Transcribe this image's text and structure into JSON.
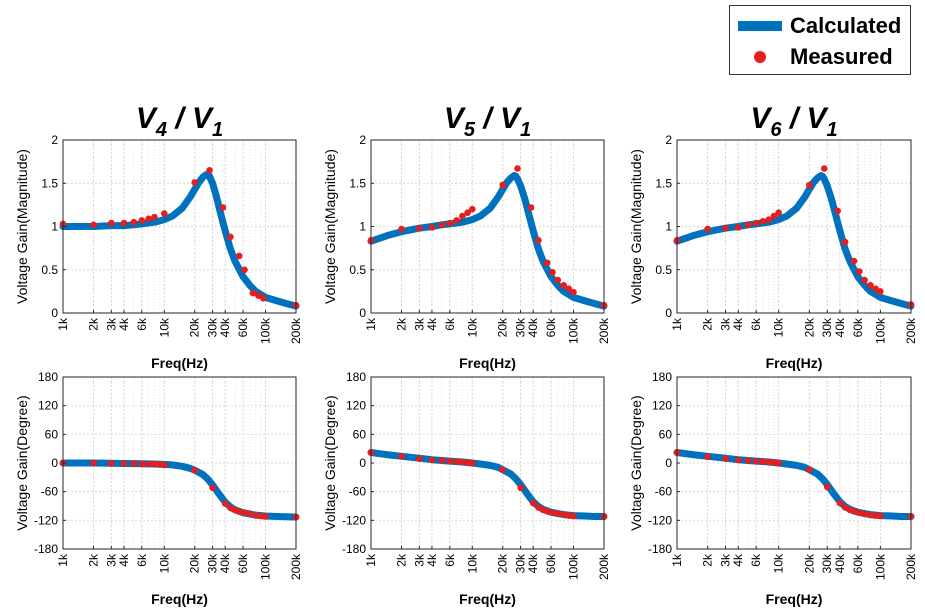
{
  "colors": {
    "calculated": "#0072BD",
    "measured": "#E61E1E",
    "grid": "#d9d9d9"
  },
  "legend": {
    "calculated": "Calculated",
    "measured": "Measured"
  },
  "chart_data": [
    {
      "type": "line",
      "panel": "V4/V1 magnitude",
      "title": {
        "main": "V",
        "sub": "4",
        "sep": " / V",
        "sub2": "1"
      },
      "xlabel": "Freq(Hz)",
      "ylabel": "Voltage Gain(Magnitude)",
      "xscale": "log",
      "xlim": [
        1000,
        200000
      ],
      "ylim": [
        0,
        2
      ],
      "xticks": [
        1000,
        2000,
        3000,
        4000,
        6000,
        10000,
        20000,
        30000,
        40000,
        60000,
        100000,
        200000
      ],
      "xticklabels": [
        "1k",
        "2k",
        "3k",
        "4k",
        "6k",
        "10k",
        "20k",
        "30k",
        "40k",
        "60k",
        "100k",
        "200k"
      ],
      "yticks": [
        0,
        0.5,
        1,
        1.5,
        2
      ],
      "yticklabels": [
        "0",
        "0.5",
        "1",
        "1.5",
        "2"
      ],
      "series": [
        {
          "name": "Calculated",
          "x": [
            1000,
            2000,
            3000,
            4000,
            5000,
            6000,
            8000,
            10000,
            12000,
            15000,
            18000,
            20000,
            22000,
            24000,
            26000,
            27000,
            28000,
            30000,
            33000,
            36000,
            40000,
            45000,
            50000,
            60000,
            70000,
            80000,
            100000,
            130000,
            160000,
            200000
          ],
          "y": [
            1.0,
            1.0,
            1.01,
            1.01,
            1.02,
            1.03,
            1.05,
            1.08,
            1.12,
            1.21,
            1.34,
            1.43,
            1.51,
            1.57,
            1.6,
            1.6,
            1.58,
            1.5,
            1.33,
            1.15,
            0.95,
            0.74,
            0.6,
            0.42,
            0.32,
            0.25,
            0.18,
            0.14,
            0.11,
            0.08
          ]
        },
        {
          "name": "Measured",
          "x": [
            1000,
            2000,
            3000,
            4000,
            5000,
            6000,
            7000,
            8000,
            10000,
            20000,
            28000,
            38000,
            45000,
            55000,
            62000,
            75000,
            85000,
            95000,
            200000
          ],
          "y": [
            1.03,
            1.02,
            1.04,
            1.04,
            1.05,
            1.07,
            1.09,
            1.11,
            1.15,
            1.51,
            1.65,
            1.22,
            0.88,
            0.66,
            0.5,
            0.23,
            0.2,
            0.17,
            0.09
          ]
        }
      ]
    },
    {
      "type": "line",
      "panel": "V5/V1 magnitude",
      "title": {
        "main": "V",
        "sub": "5",
        "sep": " / V",
        "sub2": "1"
      },
      "xlabel": "Freq(Hz)",
      "ylabel": "Voltage Gain(Magnitude)",
      "xscale": "log",
      "xlim": [
        1000,
        200000
      ],
      "ylim": [
        0,
        2
      ],
      "xticks": [
        1000,
        2000,
        3000,
        4000,
        6000,
        10000,
        20000,
        30000,
        40000,
        60000,
        100000,
        200000
      ],
      "xticklabels": [
        "1k",
        "2k",
        "3k",
        "4k",
        "6k",
        "10k",
        "20k",
        "30k",
        "40k",
        "60k",
        "100k",
        "200k"
      ],
      "yticks": [
        0,
        0.5,
        1,
        1.5,
        2
      ],
      "yticklabels": [
        "0",
        "0.5",
        "1",
        "1.5",
        "2"
      ],
      "series": [
        {
          "name": "Calculated",
          "x": [
            1000,
            1500,
            2000,
            3000,
            4000,
            5000,
            6000,
            8000,
            10000,
            12000,
            15000,
            18000,
            20000,
            22000,
            24000,
            26000,
            27000,
            28000,
            30000,
            33000,
            36000,
            40000,
            45000,
            50000,
            60000,
            70000,
            80000,
            100000,
            130000,
            160000,
            200000
          ],
          "y": [
            0.83,
            0.9,
            0.94,
            0.98,
            1.0,
            1.02,
            1.03,
            1.05,
            1.08,
            1.12,
            1.21,
            1.34,
            1.43,
            1.51,
            1.56,
            1.59,
            1.58,
            1.55,
            1.47,
            1.32,
            1.15,
            0.95,
            0.74,
            0.6,
            0.42,
            0.32,
            0.25,
            0.18,
            0.14,
            0.11,
            0.08
          ]
        },
        {
          "name": "Measured",
          "x": [
            1000,
            2000,
            3000,
            4000,
            5000,
            6000,
            7000,
            8000,
            9000,
            10000,
            20000,
            28000,
            38000,
            45000,
            55000,
            62000,
            70000,
            80000,
            90000,
            100000,
            200000
          ],
          "y": [
            0.84,
            0.97,
            0.98,
            0.99,
            1.02,
            1.04,
            1.07,
            1.12,
            1.16,
            1.2,
            1.48,
            1.67,
            1.22,
            0.84,
            0.58,
            0.47,
            0.38,
            0.32,
            0.28,
            0.24,
            0.09
          ]
        }
      ]
    },
    {
      "type": "line",
      "panel": "V6/V1 magnitude",
      "title": {
        "main": "V",
        "sub": "6",
        "sep": " / V",
        "sub2": "1"
      },
      "xlabel": "Freq(Hz)",
      "ylabel": "Voltage Gain(Magnitude)",
      "xscale": "log",
      "xlim": [
        1000,
        200000
      ],
      "ylim": [
        0,
        2
      ],
      "xticks": [
        1000,
        2000,
        3000,
        4000,
        6000,
        10000,
        20000,
        30000,
        40000,
        60000,
        100000,
        200000
      ],
      "xticklabels": [
        "1k",
        "2k",
        "3k",
        "4k",
        "6k",
        "10k",
        "20k",
        "30k",
        "40k",
        "60k",
        "100k",
        "200k"
      ],
      "yticks": [
        0,
        0.5,
        1,
        1.5,
        2
      ],
      "yticklabels": [
        "0",
        "0.5",
        "1",
        "1.5",
        "2"
      ],
      "series": [
        {
          "name": "Calculated",
          "x": [
            1000,
            1500,
            2000,
            3000,
            4000,
            5000,
            6000,
            8000,
            10000,
            12000,
            15000,
            18000,
            20000,
            22000,
            24000,
            26000,
            27000,
            28000,
            30000,
            33000,
            36000,
            40000,
            45000,
            50000,
            60000,
            70000,
            80000,
            100000,
            130000,
            160000,
            200000
          ],
          "y": [
            0.83,
            0.9,
            0.94,
            0.98,
            1.0,
            1.02,
            1.03,
            1.05,
            1.08,
            1.12,
            1.21,
            1.34,
            1.43,
            1.51,
            1.56,
            1.59,
            1.58,
            1.55,
            1.47,
            1.32,
            1.15,
            0.95,
            0.74,
            0.6,
            0.42,
            0.32,
            0.25,
            0.18,
            0.14,
            0.11,
            0.08
          ]
        },
        {
          "name": "Measured",
          "x": [
            1000,
            2000,
            3000,
            4000,
            5000,
            6000,
            7000,
            8000,
            9000,
            10000,
            20000,
            28000,
            38000,
            45000,
            55000,
            62000,
            70000,
            80000,
            90000,
            100000,
            200000
          ],
          "y": [
            0.84,
            0.97,
            0.98,
            0.99,
            1.02,
            1.04,
            1.06,
            1.08,
            1.12,
            1.16,
            1.48,
            1.67,
            1.18,
            0.82,
            0.6,
            0.48,
            0.38,
            0.32,
            0.28,
            0.25,
            0.1
          ]
        }
      ]
    },
    {
      "type": "line",
      "panel": "V4/V1 phase",
      "xlabel": "Freq(Hz)",
      "ylabel": "Voltage Gain(Degree)",
      "xscale": "log",
      "xlim": [
        1000,
        200000
      ],
      "ylim": [
        -180,
        180
      ],
      "xticks": [
        1000,
        2000,
        3000,
        4000,
        6000,
        10000,
        20000,
        30000,
        40000,
        60000,
        100000,
        200000
      ],
      "xticklabels": [
        "1k",
        "2k",
        "3k",
        "4k",
        "6k",
        "10k",
        "20k",
        "30k",
        "40k",
        "60k",
        "100k",
        "200k"
      ],
      "yticks": [
        -180,
        -120,
        -60,
        0,
        60,
        120,
        180
      ],
      "yticklabels": [
        "-180",
        "-120",
        "-60",
        "0",
        "60",
        "120",
        "180"
      ],
      "series": [
        {
          "name": "Calculated",
          "x": [
            1000,
            2000,
            3000,
            4000,
            6000,
            8000,
            10000,
            12000,
            15000,
            18000,
            20000,
            24000,
            27000,
            30000,
            35000,
            40000,
            45000,
            50000,
            60000,
            70000,
            80000,
            100000,
            130000,
            160000,
            200000
          ],
          "y": [
            0,
            0,
            -0.5,
            -1,
            -1.5,
            -2,
            -3,
            -4,
            -7,
            -11,
            -15,
            -24,
            -34,
            -46,
            -66,
            -82,
            -92,
            -98,
            -104,
            -107,
            -109,
            -111,
            -112,
            -112.5,
            -113
          ]
        },
        {
          "name": "Measured",
          "x": [
            1000,
            2000,
            3000,
            4000,
            5000,
            6000,
            7000,
            8000,
            9000,
            10000,
            20000,
            30000,
            40000,
            45000,
            50000,
            55000,
            62000,
            70000,
            80000,
            90000,
            100000,
            200000
          ],
          "y": [
            0,
            0,
            -1,
            -1,
            -1,
            -2,
            -2,
            -2,
            -3,
            -4,
            -15,
            -52,
            -85,
            -94,
            -98,
            -102,
            -104,
            -106,
            -110,
            -111,
            -112,
            -113
          ]
        }
      ]
    },
    {
      "type": "line",
      "panel": "V5/V1 phase",
      "xlabel": "Freq(Hz)",
      "ylabel": "Voltage Gain(Degree)",
      "xscale": "log",
      "xlim": [
        1000,
        200000
      ],
      "ylim": [
        -180,
        180
      ],
      "xticks": [
        1000,
        2000,
        3000,
        4000,
        6000,
        10000,
        20000,
        30000,
        40000,
        60000,
        100000,
        200000
      ],
      "xticklabels": [
        "1k",
        "2k",
        "3k",
        "4k",
        "6k",
        "10k",
        "20k",
        "30k",
        "40k",
        "60k",
        "100k",
        "200k"
      ],
      "yticks": [
        -180,
        -120,
        -60,
        0,
        60,
        120,
        180
      ],
      "yticklabels": [
        "-180",
        "-120",
        "-60",
        "0",
        "60",
        "120",
        "180"
      ],
      "series": [
        {
          "name": "Calculated",
          "x": [
            1000,
            1500,
            2000,
            3000,
            4000,
            6000,
            8000,
            10000,
            12000,
            15000,
            18000,
            20000,
            24000,
            27000,
            30000,
            35000,
            40000,
            45000,
            50000,
            60000,
            70000,
            80000,
            100000,
            130000,
            160000,
            200000
          ],
          "y": [
            22,
            17,
            14,
            10,
            7,
            4,
            2,
            0,
            -2,
            -5,
            -9,
            -14,
            -23,
            -33,
            -45,
            -65,
            -81,
            -91,
            -97,
            -103,
            -106,
            -108,
            -110,
            -111,
            -112,
            -112
          ]
        },
        {
          "name": "Measured",
          "x": [
            1000,
            2000,
            3000,
            4000,
            5000,
            6000,
            7000,
            8000,
            9000,
            10000,
            20000,
            30000,
            40000,
            45000,
            50000,
            55000,
            62000,
            70000,
            80000,
            90000,
            100000,
            200000
          ],
          "y": [
            22,
            14,
            9,
            6,
            5,
            4,
            3,
            2,
            1,
            0,
            -14,
            -52,
            -84,
            -93,
            -98,
            -101,
            -104,
            -106,
            -108,
            -110,
            -111,
            -112
          ]
        }
      ]
    },
    {
      "type": "line",
      "panel": "V6/V1 phase",
      "xlabel": "Freq(Hz)",
      "ylabel": "Voltage Gain(Degree)",
      "xscale": "log",
      "xlim": [
        1000,
        200000
      ],
      "ylim": [
        -180,
        180
      ],
      "xticks": [
        1000,
        2000,
        3000,
        4000,
        6000,
        10000,
        20000,
        30000,
        40000,
        60000,
        100000,
        200000
      ],
      "xticklabels": [
        "1k",
        "2k",
        "3k",
        "4k",
        "6k",
        "10k",
        "20k",
        "30k",
        "40k",
        "60k",
        "100k",
        "200k"
      ],
      "yticks": [
        -180,
        -120,
        -60,
        0,
        60,
        120,
        180
      ],
      "yticklabels": [
        "-180",
        "-120",
        "-60",
        "0",
        "60",
        "120",
        "180"
      ],
      "series": [
        {
          "name": "Calculated",
          "x": [
            1000,
            1500,
            2000,
            3000,
            4000,
            6000,
            8000,
            10000,
            12000,
            15000,
            18000,
            20000,
            24000,
            27000,
            30000,
            35000,
            40000,
            45000,
            50000,
            60000,
            70000,
            80000,
            100000,
            130000,
            160000,
            200000
          ],
          "y": [
            22,
            17,
            14,
            10,
            7,
            4,
            2,
            0,
            -2,
            -5,
            -9,
            -14,
            -23,
            -33,
            -45,
            -65,
            -81,
            -91,
            -97,
            -103,
            -106,
            -108,
            -110,
            -111,
            -112,
            -112
          ]
        },
        {
          "name": "Measured",
          "x": [
            1000,
            2000,
            3000,
            4000,
            5000,
            6000,
            7000,
            8000,
            9000,
            10000,
            20000,
            30000,
            40000,
            45000,
            50000,
            55000,
            62000,
            70000,
            80000,
            90000,
            100000,
            200000
          ],
          "y": [
            22,
            13,
            9,
            6,
            5,
            4,
            3,
            2,
            1,
            0,
            -14,
            -50,
            -84,
            -93,
            -98,
            -101,
            -104,
            -107,
            -109,
            -110,
            -111,
            -112
          ]
        }
      ]
    }
  ]
}
